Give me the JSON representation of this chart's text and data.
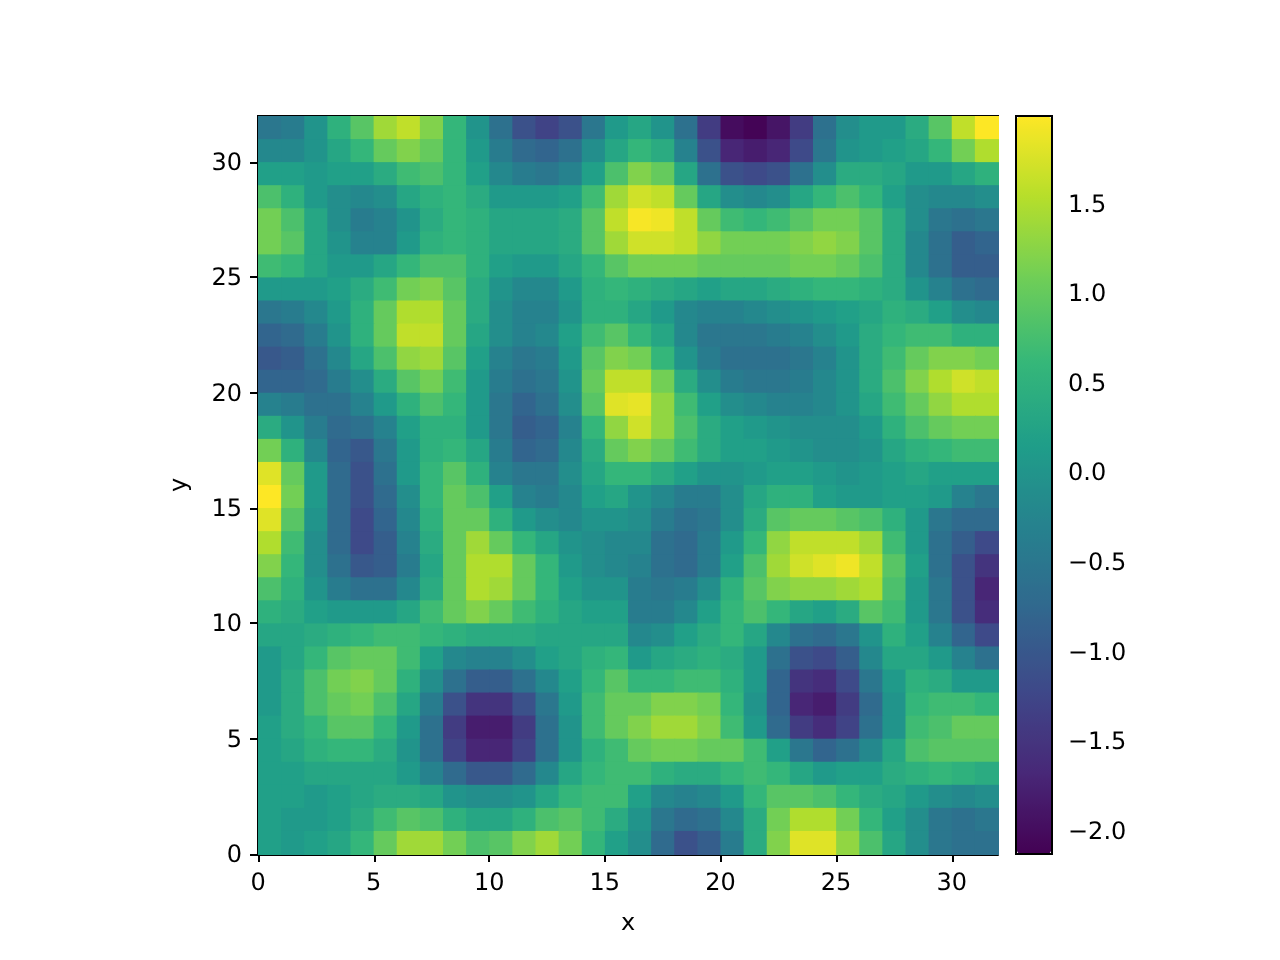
{
  "chart_data": {
    "type": "heatmap",
    "xlabel": "x",
    "ylabel": "y",
    "xlim": [
      0,
      32
    ],
    "ylim": [
      0,
      32
    ],
    "xticks": [
      0,
      5,
      10,
      15,
      20,
      25,
      30
    ],
    "yticks": [
      0,
      5,
      10,
      15,
      20,
      25,
      30
    ],
    "clim": [
      -2.13,
      1.99
    ],
    "cticks": [
      {
        "value": -2,
        "label": "−2.0"
      },
      {
        "value": -1.5,
        "label": "−1.5"
      },
      {
        "value": -1,
        "label": "−1.0"
      },
      {
        "value": -0.5,
        "label": "−0.5"
      },
      {
        "value": 0,
        "label": "0.0"
      },
      {
        "value": 0.5,
        "label": "0.5"
      },
      {
        "value": 1,
        "label": "1.0"
      },
      {
        "value": 1.5,
        "label": "1.5"
      }
    ],
    "cells": [
      [
        -0.5,
        -0.4,
        0,
        0.5,
        0.9,
        1.4,
        1.6,
        1.2,
        0.6,
        0,
        -0.6,
        -1.1,
        -1.3,
        -1.1,
        -0.5,
        0.1,
        0.3,
        0,
        -0.6,
        -1.4,
        -2,
        -2.1,
        -1.9,
        -1.4,
        -0.6,
        -0.1,
        0.1,
        0.1,
        0.4,
        0.9,
        1.6,
        1.99
      ],
      [
        -0.2,
        -0.2,
        0,
        0.3,
        0.6,
        1,
        1.2,
        1,
        0.6,
        0.1,
        -0.4,
        -0.7,
        -0.8,
        -0.6,
        -0.1,
        0.3,
        0.6,
        0.4,
        -0.3,
        -1.1,
        -1.7,
        -1.8,
        -1.7,
        -1.2,
        -0.5,
        0,
        0.1,
        0.2,
        0.3,
        0.6,
        1.1,
        1.5
      ],
      [
        0.2,
        0.2,
        0.1,
        0.2,
        0.2,
        0.4,
        0.7,
        0.8,
        0.6,
        0.2,
        -0.2,
        -0.4,
        -0.5,
        -0.3,
        0.2,
        0.8,
        1.2,
        1,
        0.3,
        -0.6,
        -1.1,
        -1.2,
        -1.1,
        -0.6,
        -0.1,
        0.4,
        0.4,
        0.3,
        0.1,
        0.1,
        0.3,
        0.5
      ],
      [
        0.8,
        0.5,
        0.1,
        -0.1,
        -0.2,
        -0.1,
        0.3,
        0.5,
        0.6,
        0.4,
        0.1,
        0.1,
        0.1,
        0.2,
        0.7,
        1.4,
        1.7,
        1.6,
        1,
        0.3,
        -0.1,
        -0.2,
        -0.1,
        0.3,
        0.6,
        0.8,
        0.6,
        0.2,
        -0.1,
        -0.2,
        -0.2,
        -0.1
      ],
      [
        1.1,
        0.8,
        0.3,
        -0.1,
        -0.4,
        -0.3,
        0,
        0.4,
        0.6,
        0.5,
        0.3,
        0.3,
        0.3,
        0.4,
        0.9,
        1.6,
        1.95,
        1.9,
        1.6,
        1,
        0.7,
        0.6,
        0.7,
        0.9,
        1.1,
        1.1,
        0.9,
        0.4,
        -0.1,
        -0.5,
        -0.6,
        -0.5
      ],
      [
        1.1,
        0.9,
        0.3,
        0,
        -0.3,
        -0.3,
        0.1,
        0.5,
        0.6,
        0.5,
        0.3,
        0.3,
        0.3,
        0.4,
        0.9,
        1.4,
        1.7,
        1.7,
        1.6,
        1.3,
        1.1,
        1.1,
        1.1,
        1.2,
        1.3,
        1.2,
        0.9,
        0.4,
        -0.2,
        -0.6,
        -0.9,
        -0.8
      ],
      [
        0.7,
        0.6,
        0.3,
        0.1,
        0.1,
        0.3,
        0.6,
        0.8,
        0.8,
        0.5,
        0.2,
        0.1,
        0.1,
        0.3,
        0.6,
        0.9,
        1.1,
        1.1,
        1.1,
        1,
        1,
        1,
        1,
        1.1,
        1.1,
        1,
        0.8,
        0.4,
        -0.2,
        -0.6,
        -0.9,
        -0.9
      ],
      [
        0.1,
        0.1,
        0.1,
        0.2,
        0.4,
        0.7,
        1.1,
        1.2,
        0.9,
        0.4,
        0,
        -0.2,
        -0.2,
        0.1,
        0.5,
        0.6,
        0.5,
        0.4,
        0.3,
        0.2,
        0.3,
        0.3,
        0.4,
        0.5,
        0.6,
        0.6,
        0.5,
        0.4,
        0,
        -0.3,
        -0.6,
        -0.7
      ],
      [
        -0.5,
        -0.4,
        -0.2,
        0.1,
        0.5,
        1,
        1.5,
        1.5,
        1,
        0.4,
        -0.1,
        -0.3,
        -0.3,
        0,
        0.5,
        0.5,
        0.3,
        0.1,
        -0.2,
        -0.3,
        -0.3,
        -0.2,
        -0.1,
        0,
        0.1,
        0.2,
        0.3,
        0.5,
        0.4,
        0.2,
        -0.1,
        -0.2
      ],
      [
        -0.8,
        -0.7,
        -0.4,
        0,
        0.5,
        1,
        1.6,
        1.6,
        1,
        0.3,
        -0.1,
        -0.3,
        -0.2,
        0.2,
        0.7,
        0.9,
        0.6,
        0.3,
        -0.2,
        -0.5,
        -0.5,
        -0.5,
        -0.4,
        -0.3,
        -0.1,
        0.1,
        0.4,
        0.6,
        0.7,
        0.7,
        0.5,
        0.5
      ],
      [
        -1,
        -0.9,
        -0.6,
        -0.2,
        0.3,
        0.8,
        1.3,
        1.4,
        0.9,
        0.2,
        -0.3,
        -0.5,
        -0.4,
        0.1,
        0.9,
        1.2,
        1.1,
        0.6,
        0,
        -0.4,
        -0.6,
        -0.6,
        -0.6,
        -0.5,
        -0.3,
        0,
        0.4,
        0.7,
        1,
        1.2,
        1.2,
        1.1
      ],
      [
        -0.8,
        -0.8,
        -0.7,
        -0.4,
        -0.1,
        0.4,
        0.9,
        1.1,
        0.7,
        0.1,
        -0.4,
        -0.6,
        -0.5,
        0,
        1,
        1.6,
        1.6,
        1.1,
        0.4,
        -0.1,
        -0.4,
        -0.5,
        -0.5,
        -0.4,
        -0.2,
        0,
        0.4,
        0.8,
        1.2,
        1.5,
        1.7,
        1.6
      ],
      [
        -0.3,
        -0.4,
        -0.6,
        -0.6,
        -0.3,
        0.1,
        0.5,
        0.8,
        0.6,
        0.1,
        -0.5,
        -0.8,
        -0.6,
        -0.1,
        0.9,
        1.8,
        1.85,
        1.3,
        0.7,
        0.2,
        -0.1,
        -0.2,
        -0.3,
        -0.3,
        -0.2,
        0,
        0.3,
        0.7,
        1,
        1.3,
        1.5,
        1.5
      ],
      [
        0.4,
        0,
        -0.4,
        -0.7,
        -0.6,
        -0.3,
        0.2,
        0.5,
        0.5,
        0.1,
        -0.5,
        -0.9,
        -0.8,
        -0.3,
        0.6,
        1.3,
        1.7,
        1.3,
        0.8,
        0.4,
        0.2,
        0.1,
        0,
        -0.1,
        -0.1,
        -0.1,
        0.1,
        0.5,
        0.8,
        1,
        1.1,
        1.1
      ],
      [
        1.1,
        0.5,
        -0.2,
        -0.8,
        -1,
        -0.5,
        0.1,
        0.5,
        0.6,
        0.3,
        -0.4,
        -0.8,
        -0.7,
        -0.2,
        0.4,
        1,
        1.2,
        1,
        0.7,
        0.4,
        0.2,
        0.2,
        0.1,
        0,
        -0.1,
        -0.1,
        0,
        0.3,
        0.5,
        0.6,
        0.7,
        0.7
      ],
      [
        1.8,
        1,
        0.1,
        -0.7,
        -1.1,
        -0.6,
        0.1,
        0.6,
        0.9,
        0.5,
        -0.3,
        -0.5,
        -0.5,
        -0.1,
        0.3,
        0.6,
        0.6,
        0.4,
        0.2,
        0,
        0,
        0.1,
        0.2,
        0.2,
        0.1,
        0,
        0.1,
        0.2,
        0.3,
        0.2,
        0.2,
        0.2
      ],
      [
        1.99,
        1.1,
        0.1,
        -0.7,
        -1.1,
        -0.7,
        -0.1,
        0.6,
        1,
        0.8,
        0.2,
        -0.3,
        -0.4,
        -0.2,
        0.2,
        0.3,
        0,
        -0.2,
        -0.4,
        -0.4,
        -0.1,
        0.3,
        0.5,
        0.5,
        0.2,
        0.1,
        0.1,
        0.2,
        0.2,
        0.1,
        -0.3,
        -0.5
      ],
      [
        1.8,
        0.9,
        0,
        -0.7,
        -1.2,
        -0.8,
        -0.2,
        0.5,
        1,
        1,
        0.5,
        0.1,
        -0.1,
        -0.2,
        0,
        0,
        -0.1,
        -0.4,
        -0.6,
        -0.5,
        -0.1,
        0.4,
        0.9,
        1,
        1,
        0.9,
        0.8,
        0.5,
        0.1,
        -0.5,
        -0.7,
        -0.7
      ],
      [
        1.5,
        0.7,
        -0.1,
        -0.7,
        -1.2,
        -0.9,
        -0.3,
        0.4,
        1,
        1.4,
        1,
        0.6,
        0.3,
        0,
        -0.1,
        -0.2,
        -0.2,
        -0.6,
        -0.7,
        -0.4,
        0.1,
        0.6,
        1.3,
        1.6,
        1.6,
        1.6,
        1.4,
        0.7,
        0.1,
        -0.6,
        -0.9,
        -1.2
      ],
      [
        1.2,
        0.6,
        -0.1,
        -0.6,
        -1,
        -0.9,
        -0.4,
        0.3,
        1,
        1.5,
        1.5,
        1,
        0.6,
        0.1,
        -0.1,
        -0.2,
        -0.3,
        -0.6,
        -0.7,
        -0.4,
        0.2,
        0.8,
        1.4,
        1.7,
        1.8,
        1.9,
        1.6,
        0.9,
        0.2,
        -0.6,
        -1.1,
        -1.5
      ],
      [
        0.8,
        0.5,
        0,
        -0.4,
        -0.6,
        -0.6,
        -0.2,
        0.4,
        1,
        1.5,
        1.4,
        1,
        0.6,
        0.2,
        0,
        0,
        -0.4,
        -0.5,
        -0.4,
        -0.1,
        0.5,
        0.9,
        1.2,
        1.3,
        1.3,
        1.4,
        1.5,
        0.8,
        0.1,
        -0.5,
        -1.1,
        -1.7
      ],
      [
        0.5,
        0.4,
        0.2,
        0.1,
        0.1,
        0.1,
        0.3,
        0.7,
        1,
        1.2,
        1,
        0.7,
        0.5,
        0.3,
        0.2,
        0.2,
        -0.4,
        -0.4,
        -0.2,
        0.2,
        0.6,
        0.8,
        0.6,
        0.3,
        0.2,
        0.4,
        0.9,
        0.7,
        0.1,
        -0.5,
        -1.1,
        -1.6
      ],
      [
        0.3,
        0.3,
        0.4,
        0.5,
        0.6,
        0.7,
        0.7,
        0.6,
        0.5,
        0.4,
        0.4,
        0.4,
        0.3,
        0.3,
        0.3,
        0.3,
        -0.2,
        -0.1,
        0.2,
        0.4,
        0.6,
        0.3,
        -0.2,
        -0.6,
        -0.7,
        -0.5,
        0,
        0.5,
        0.2,
        -0.3,
        -0.8,
        -1.2
      ],
      [
        0.1,
        0.3,
        0.6,
        0.9,
        1,
        1,
        0.7,
        0.2,
        -0.2,
        -0.3,
        -0.3,
        -0.1,
        0.2,
        0.3,
        0.5,
        0.6,
        0.1,
        0.3,
        0.4,
        0.5,
        0.4,
        0.1,
        -0.6,
        -1.1,
        -1.2,
        -0.9,
        -0.2,
        0.3,
        0.3,
        0.1,
        -0.3,
        -0.6
      ],
      [
        0.1,
        0.4,
        0.8,
        1.1,
        1.2,
        1,
        0.5,
        -0.1,
        -0.6,
        -0.9,
        -0.9,
        -0.6,
        -0.2,
        0.2,
        0.6,
        0.9,
        0.6,
        0.6,
        0.7,
        0.7,
        0.5,
        0.1,
        -0.8,
        -1.5,
        -1.6,
        -1.2,
        -0.5,
        0.1,
        0.5,
        0.4,
        0.1,
        0.1
      ],
      [
        0.1,
        0.4,
        0.8,
        1,
        1.1,
        0.8,
        0.3,
        -0.4,
        -1.1,
        -1.5,
        -1.5,
        -1.1,
        -0.5,
        0.1,
        0.7,
        1,
        1,
        1.2,
        1.2,
        1.1,
        0.6,
        0,
        -0.8,
        -1.7,
        -1.8,
        -1.4,
        -0.7,
        0,
        0.6,
        0.7,
        0.7,
        0.6
      ],
      [
        0.2,
        0.4,
        0.6,
        0.9,
        0.9,
        0.6,
        0.1,
        -0.6,
        -1.4,
        -1.8,
        -1.8,
        -1.4,
        -0.6,
        0,
        0.7,
        1,
        1.2,
        1.4,
        1.4,
        1.2,
        0.7,
        0.1,
        -0.7,
        -1.4,
        -1.6,
        -1.3,
        -0.6,
        0,
        0.7,
        0.8,
        1,
        1
      ],
      [
        0.2,
        0.3,
        0.5,
        0.6,
        0.6,
        0.4,
        0,
        -0.6,
        -1.3,
        -1.7,
        -1.7,
        -1.3,
        -0.6,
        0,
        0.5,
        0.7,
        1,
        1.1,
        1.1,
        1,
        1,
        0.7,
        0.2,
        -0.5,
        -0.8,
        -0.6,
        -0.2,
        0.3,
        0.8,
        0.9,
        0.9,
        0.9
      ],
      [
        0.2,
        0.2,
        0.3,
        0.3,
        0.3,
        0.3,
        0.1,
        -0.3,
        -0.7,
        -1,
        -1,
        -0.7,
        -0.2,
        0.3,
        0.6,
        0.7,
        0.7,
        0.5,
        0.4,
        0.4,
        0.6,
        0.7,
        0.6,
        0.3,
        0.1,
        0.2,
        0.2,
        0.4,
        0.5,
        0.6,
        0.5,
        0.4
      ],
      [
        0.2,
        0.2,
        0.1,
        0.2,
        0.3,
        0.4,
        0.4,
        0.3,
        0,
        -0.1,
        -0.1,
        0,
        0.3,
        0.6,
        0.7,
        0.7,
        0.2,
        -0.2,
        -0.3,
        -0.2,
        0.1,
        0.6,
        0.9,
        0.9,
        0.8,
        0.6,
        0.4,
        0.3,
        0.1,
        -0.1,
        -0.2,
        -0.1
      ],
      [
        0.2,
        0.1,
        0.1,
        0.2,
        0.4,
        0.7,
        0.9,
        0.8,
        0.5,
        0.3,
        0.3,
        0.5,
        0.8,
        0.9,
        0.7,
        0.4,
        0,
        -0.5,
        -0.7,
        -0.6,
        -0.2,
        0.4,
        1.1,
        1.5,
        1.5,
        1.1,
        0.6,
        0.2,
        -0.1,
        -0.5,
        -0.6,
        -0.5
      ],
      [
        0.2,
        0.1,
        0.2,
        0.3,
        0.6,
        1,
        1.4,
        1.4,
        1.1,
        0.8,
        0.9,
        1.2,
        1.4,
        1.1,
        0.6,
        0.2,
        -0.1,
        -0.7,
        -1.1,
        -0.9,
        -0.4,
        0.4,
        1.2,
        1.8,
        1.8,
        1.3,
        0.8,
        0.3,
        -0.1,
        -0.5,
        -0.6,
        -0.6
      ]
    ]
  }
}
